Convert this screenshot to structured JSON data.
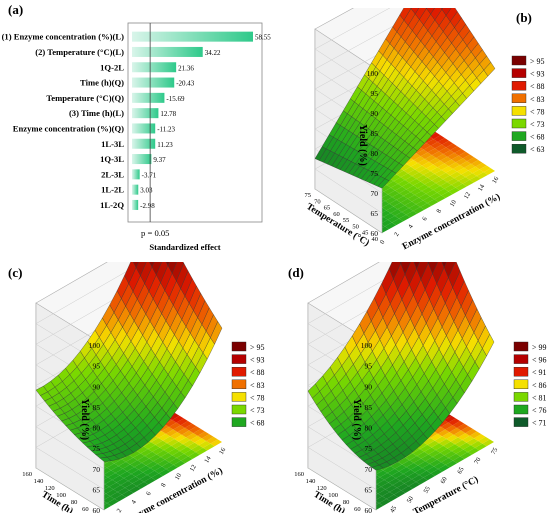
{
  "panels": {
    "a_label": "(a)",
    "b_label": "(b)",
    "c_label": "(c)",
    "d_label": "(d)"
  },
  "chart_data": [
    {
      "type": "bar",
      "orientation": "horizontal",
      "categories": [
        "(1) Enzyme concentration (%)(L)",
        "(2) Temperature (°C)(L)",
        "1Q-2L",
        "Time (h)(Q)",
        "Temperature (°C)(Q)",
        "(3) Time (h)(L)",
        "Enzyme concentration (%)(Q)",
        "1L-3L",
        "1Q-3L",
        "2L-3L",
        "1L-2L",
        "1L-2Q"
      ],
      "values": [
        58.55,
        34.22,
        21.36,
        -20.43,
        -15.69,
        12.78,
        -11.23,
        11.23,
        9.37,
        -3.71,
        3.03,
        -2.98
      ],
      "value_labels": [
        "58.55",
        "34.22",
        "21.36",
        "-20.43",
        "-15.69",
        "12.78",
        "-11.23",
        "11.23",
        "9.37",
        "-3.71",
        "3.03",
        "-2.98"
      ],
      "significance_line": 2.0,
      "significance_label": "p = 0.05",
      "xlabel": "Standardized effect"
    },
    {
      "type": "surface",
      "zlabel": "Yield (%)",
      "z_ticks": [
        "100",
        "95",
        "90",
        "85",
        "80",
        "75",
        "70",
        "65",
        "60"
      ],
      "xlabel": "Enzyme concentration (%)",
      "x_ticks": [
        "0",
        "2",
        "4",
        "6",
        "8",
        "10",
        "12",
        "14",
        "16"
      ],
      "ylabel": "Temperature (°C)",
      "y_ticks": [
        "40",
        "45",
        "50",
        "55",
        "60",
        "65",
        "70",
        "75"
      ],
      "legend": [
        {
          "label": "> 95",
          "color": "#7a0000"
        },
        {
          "label": "< 93",
          "color": "#b50000"
        },
        {
          "label": "< 88",
          "color": "#e01a00"
        },
        {
          "label": "< 83",
          "color": "#f07000"
        },
        {
          "label": "< 78",
          "color": "#f5e000"
        },
        {
          "label": "< 73",
          "color": "#7ad800"
        },
        {
          "label": "< 68",
          "color": "#1fa820"
        },
        {
          "label": "< 63",
          "color": "#0f5a2a"
        }
      ]
    },
    {
      "type": "surface",
      "zlabel": "Yield (%)",
      "z_ticks": [
        "100",
        "95",
        "90",
        "85",
        "80",
        "75",
        "70",
        "65",
        "60"
      ],
      "xlabel": "Enzyme concentration (%)",
      "x_ticks": [
        "0",
        "2",
        "4",
        "6",
        "8",
        "10",
        "12",
        "14",
        "16"
      ],
      "ylabel": "Time (h)",
      "y_ticks": [
        "40",
        "60",
        "80",
        "100",
        "120",
        "140",
        "160"
      ],
      "legend": [
        {
          "label": "> 95",
          "color": "#7a0000"
        },
        {
          "label": "< 93",
          "color": "#b50000"
        },
        {
          "label": "< 88",
          "color": "#e01a00"
        },
        {
          "label": "< 83",
          "color": "#f07000"
        },
        {
          "label": "< 78",
          "color": "#f5e000"
        },
        {
          "label": "< 73",
          "color": "#7ad800"
        },
        {
          "label": "< 68",
          "color": "#1fa820"
        }
      ]
    },
    {
      "type": "surface",
      "zlabel": "Yield (%)",
      "z_ticks": [
        "100",
        "95",
        "90",
        "85",
        "80",
        "75",
        "70",
        "65",
        "60"
      ],
      "xlabel": "Temperature (°C)",
      "x_ticks": [
        "40",
        "45",
        "50",
        "55",
        "60",
        "65",
        "70",
        "75"
      ],
      "ylabel": "Time (h)",
      "y_ticks": [
        "40",
        "60",
        "80",
        "100",
        "120",
        "140",
        "160"
      ],
      "legend": [
        {
          "label": "> 99",
          "color": "#7a0000"
        },
        {
          "label": "< 96",
          "color": "#b50000"
        },
        {
          "label": "< 91",
          "color": "#e01a00"
        },
        {
          "label": "< 86",
          "color": "#f5e000"
        },
        {
          "label": "< 81",
          "color": "#7ad800"
        },
        {
          "label": "< 76",
          "color": "#1fa820"
        },
        {
          "label": "< 71",
          "color": "#0f5a2a"
        }
      ]
    }
  ]
}
